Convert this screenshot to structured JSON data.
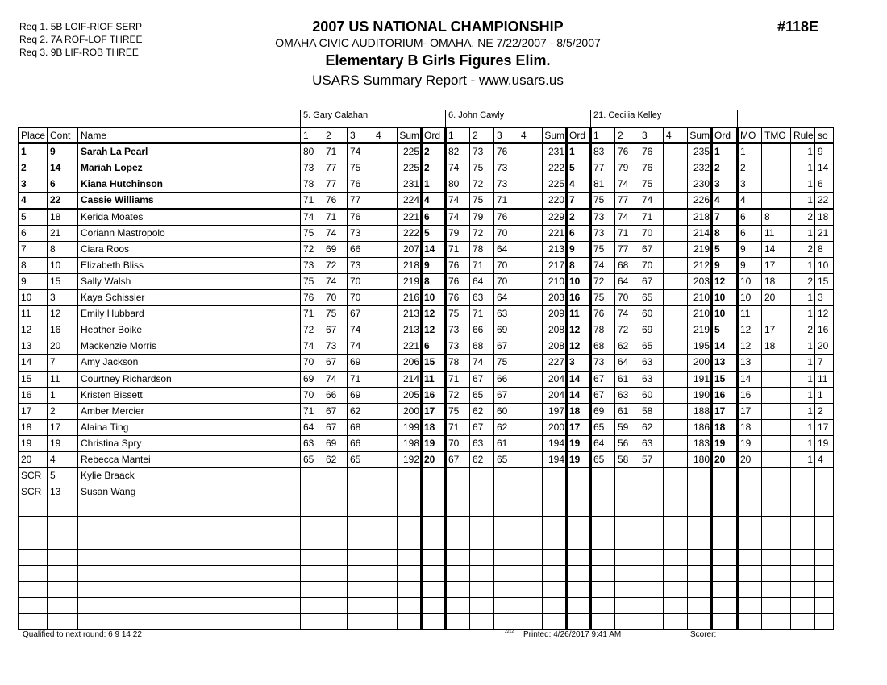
{
  "requirements": [
    "Req 1.  5B LOIF-RIOF SERP",
    "Req 2.  7A ROF-LOF THREE",
    "Req 3.  9B LIF-ROB THREE"
  ],
  "header": {
    "title": "2007 US NATIONAL CHAMPIONSHIP",
    "venue": "OMAHA CIVIC AUDITORIUM- OMAHA, NE  7/22/2007 - 8/5/2007",
    "event": "Elementary B Girls Figures Elim.",
    "report": "USARS Summary Report - www.usars.us",
    "event_number": "#118E"
  },
  "judges": [
    "5.  Gary Calahan",
    "6.  John Cawly",
    "21.  Cecilia Kelley"
  ],
  "columns": {
    "place": "Place",
    "cont": "Cont",
    "name": "Name",
    "judge_cols": [
      "1",
      "2",
      "3",
      "4",
      "Sum",
      "Ord"
    ],
    "mo": "MO",
    "tmo": "TMO",
    "rule": "Rule",
    "so": "so"
  },
  "rows": [
    {
      "place": "1",
      "cont": "9",
      "name": "Sarah La Pearl",
      "bold": true,
      "j": [
        [
          "80",
          "71",
          "74",
          "",
          "225",
          "2"
        ],
        [
          "82",
          "73",
          "76",
          "",
          "231",
          "1"
        ],
        [
          "83",
          "76",
          "76",
          "",
          "235",
          "1"
        ]
      ],
      "mo": "1",
      "tmo": "",
      "rule": "1",
      "so": "9"
    },
    {
      "place": "2",
      "cont": "14",
      "name": "Mariah Lopez",
      "bold": true,
      "j": [
        [
          "73",
          "77",
          "75",
          "",
          "225",
          "2"
        ],
        [
          "74",
          "75",
          "73",
          "",
          "222",
          "5"
        ],
        [
          "77",
          "79",
          "76",
          "",
          "232",
          "2"
        ]
      ],
      "mo": "2",
      "tmo": "",
      "rule": "1",
      "so": "14"
    },
    {
      "place": "3",
      "cont": "6",
      "name": "Kiana Hutchinson",
      "bold": true,
      "j": [
        [
          "78",
          "77",
          "76",
          "",
          "231",
          "1"
        ],
        [
          "80",
          "72",
          "73",
          "",
          "225",
          "4"
        ],
        [
          "81",
          "74",
          "75",
          "",
          "230",
          "3"
        ]
      ],
      "mo": "3",
      "tmo": "",
      "rule": "1",
      "so": "6"
    },
    {
      "place": "4",
      "cont": "22",
      "name": "Cassie Williams",
      "bold": true,
      "j": [
        [
          "71",
          "76",
          "77",
          "",
          "224",
          "4"
        ],
        [
          "74",
          "75",
          "71",
          "",
          "220",
          "7"
        ],
        [
          "75",
          "77",
          "74",
          "",
          "226",
          "4"
        ]
      ],
      "mo": "4",
      "tmo": "",
      "rule": "1",
      "so": "22"
    },
    {
      "place": "5",
      "cont": "18",
      "name": "Kerida Moates",
      "j": [
        [
          "74",
          "71",
          "76",
          "",
          "221",
          "6"
        ],
        [
          "74",
          "79",
          "76",
          "",
          "229",
          "2"
        ],
        [
          "73",
          "74",
          "71",
          "",
          "218",
          "7"
        ]
      ],
      "mo": "6",
      "tmo": "8",
      "rule": "2",
      "so": "18"
    },
    {
      "place": "6",
      "cont": "21",
      "name": "Coriann Mastropolo",
      "j": [
        [
          "75",
          "74",
          "73",
          "",
          "222",
          "5"
        ],
        [
          "79",
          "72",
          "70",
          "",
          "221",
          "6"
        ],
        [
          "73",
          "71",
          "70",
          "",
          "214",
          "8"
        ]
      ],
      "mo": "6",
      "tmo": "11",
      "rule": "1",
      "so": "21"
    },
    {
      "place": "7",
      "cont": "8",
      "name": "Ciara Roos",
      "j": [
        [
          "72",
          "69",
          "66",
          "",
          "207",
          "14"
        ],
        [
          "71",
          "78",
          "64",
          "",
          "213",
          "9"
        ],
        [
          "75",
          "77",
          "67",
          "",
          "219",
          "5"
        ]
      ],
      "mo": "9",
      "tmo": "14",
      "rule": "2",
      "so": "8"
    },
    {
      "place": "8",
      "cont": "10",
      "name": "Elizabeth Bliss",
      "j": [
        [
          "73",
          "72",
          "73",
          "",
          "218",
          "9"
        ],
        [
          "76",
          "71",
          "70",
          "",
          "217",
          "8"
        ],
        [
          "74",
          "68",
          "70",
          "",
          "212",
          "9"
        ]
      ],
      "mo": "9",
      "tmo": "17",
      "rule": "1",
      "so": "10"
    },
    {
      "place": "9",
      "cont": "15",
      "name": "Sally Walsh",
      "j": [
        [
          "75",
          "74",
          "70",
          "",
          "219",
          "8"
        ],
        [
          "76",
          "64",
          "70",
          "",
          "210",
          "10"
        ],
        [
          "72",
          "64",
          "67",
          "",
          "203",
          "12"
        ]
      ],
      "mo": "10",
      "tmo": "18",
      "rule": "2",
      "so": "15"
    },
    {
      "place": "10",
      "cont": "3",
      "name": "Kaya Schissler",
      "j": [
        [
          "76",
          "70",
          "70",
          "",
          "216",
          "10"
        ],
        [
          "76",
          "63",
          "64",
          "",
          "203",
          "16"
        ],
        [
          "75",
          "70",
          "65",
          "",
          "210",
          "10"
        ]
      ],
      "mo": "10",
      "tmo": "20",
      "rule": "1",
      "so": "3"
    },
    {
      "place": "11",
      "cont": "12",
      "name": "Emily Hubbard",
      "j": [
        [
          "71",
          "75",
          "67",
          "",
          "213",
          "12"
        ],
        [
          "75",
          "71",
          "63",
          "",
          "209",
          "11"
        ],
        [
          "76",
          "74",
          "60",
          "",
          "210",
          "10"
        ]
      ],
      "mo": "11",
      "tmo": "",
      "rule": "1",
      "so": "12"
    },
    {
      "place": "12",
      "cont": "16",
      "name": "Heather Boike",
      "j": [
        [
          "72",
          "67",
          "74",
          "",
          "213",
          "12"
        ],
        [
          "73",
          "66",
          "69",
          "",
          "208",
          "12"
        ],
        [
          "78",
          "72",
          "69",
          "",
          "219",
          "5"
        ]
      ],
      "mo": "12",
      "tmo": "17",
      "rule": "2",
      "so": "16"
    },
    {
      "place": "13",
      "cont": "20",
      "name": "Mackenzie Morris",
      "j": [
        [
          "74",
          "73",
          "74",
          "",
          "221",
          "6"
        ],
        [
          "73",
          "68",
          "67",
          "",
          "208",
          "12"
        ],
        [
          "68",
          "62",
          "65",
          "",
          "195",
          "14"
        ]
      ],
      "mo": "12",
      "tmo": "18",
      "rule": "1",
      "so": "20"
    },
    {
      "place": "14",
      "cont": "7",
      "name": "Amy Jackson",
      "j": [
        [
          "70",
          "67",
          "69",
          "",
          "206",
          "15"
        ],
        [
          "78",
          "74",
          "75",
          "",
          "227",
          "3"
        ],
        [
          "73",
          "64",
          "63",
          "",
          "200",
          "13"
        ]
      ],
      "mo": "13",
      "tmo": "",
      "rule": "1",
      "so": "7"
    },
    {
      "place": "15",
      "cont": "11",
      "name": "Courtney Richardson",
      "j": [
        [
          "69",
          "74",
          "71",
          "",
          "214",
          "11"
        ],
        [
          "71",
          "67",
          "66",
          "",
          "204",
          "14"
        ],
        [
          "67",
          "61",
          "63",
          "",
          "191",
          "15"
        ]
      ],
      "mo": "14",
      "tmo": "",
      "rule": "1",
      "so": "11"
    },
    {
      "place": "16",
      "cont": "1",
      "name": "Kristen Bissett",
      "j": [
        [
          "70",
          "66",
          "69",
          "",
          "205",
          "16"
        ],
        [
          "72",
          "65",
          "67",
          "",
          "204",
          "14"
        ],
        [
          "67",
          "63",
          "60",
          "",
          "190",
          "16"
        ]
      ],
      "mo": "16",
      "tmo": "",
      "rule": "1",
      "so": "1"
    },
    {
      "place": "17",
      "cont": "2",
      "name": "Amber Mercier",
      "j": [
        [
          "71",
          "67",
          "62",
          "",
          "200",
          "17"
        ],
        [
          "75",
          "62",
          "60",
          "",
          "197",
          "18"
        ],
        [
          "69",
          "61",
          "58",
          "",
          "188",
          "17"
        ]
      ],
      "mo": "17",
      "tmo": "",
      "rule": "1",
      "so": "2"
    },
    {
      "place": "18",
      "cont": "17",
      "name": "Alaina Ting",
      "j": [
        [
          "64",
          "67",
          "68",
          "",
          "199",
          "18"
        ],
        [
          "71",
          "67",
          "62",
          "",
          "200",
          "17"
        ],
        [
          "65",
          "59",
          "62",
          "",
          "186",
          "18"
        ]
      ],
      "mo": "18",
      "tmo": "",
      "rule": "1",
      "so": "17"
    },
    {
      "place": "19",
      "cont": "19",
      "name": "Christina Spry",
      "j": [
        [
          "63",
          "69",
          "66",
          "",
          "198",
          "19"
        ],
        [
          "70",
          "63",
          "61",
          "",
          "194",
          "19"
        ],
        [
          "64",
          "56",
          "63",
          "",
          "183",
          "19"
        ]
      ],
      "mo": "19",
      "tmo": "",
      "rule": "1",
      "so": "19"
    },
    {
      "place": "20",
      "cont": "4",
      "name": "Rebecca Mantei",
      "j": [
        [
          "65",
          "62",
          "65",
          "",
          "192",
          "20"
        ],
        [
          "67",
          "62",
          "65",
          "",
          "194",
          "19"
        ],
        [
          "65",
          "58",
          "57",
          "",
          "180",
          "20"
        ]
      ],
      "mo": "20",
      "tmo": "",
      "rule": "1",
      "so": "4"
    },
    {
      "place": "SCR",
      "cont": "5",
      "name": "Kylie Braack"
    },
    {
      "place": "SCR",
      "cont": "13",
      "name": "Susan Wang"
    }
  ],
  "footer": {
    "qualified": "Qualified to next round:   6 9 14 22",
    "code": "2212",
    "printed": "Printed:  4/26/2017  9:41 AM",
    "scorer": "Scorer:"
  }
}
